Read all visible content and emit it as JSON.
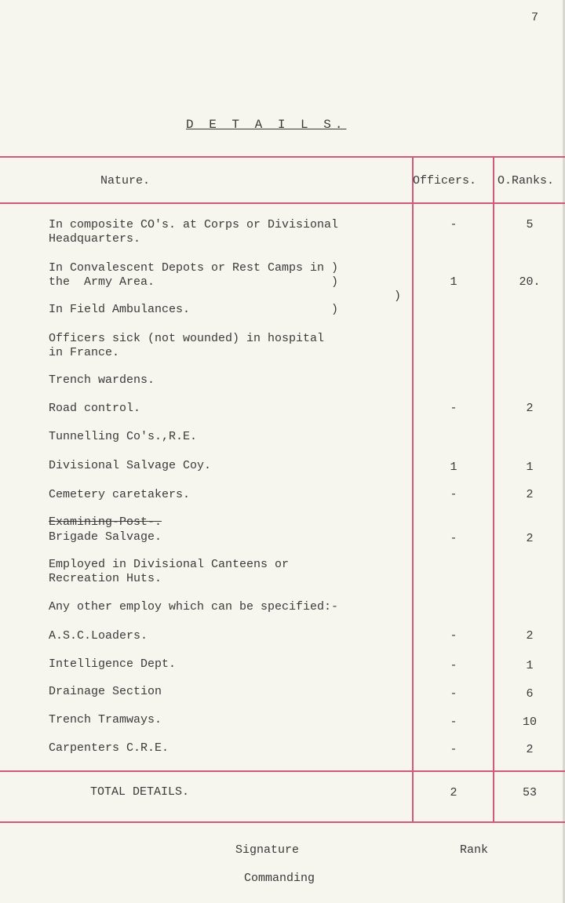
{
  "page_number": "7",
  "title": "D E T A I L S.",
  "headers": {
    "nature": "Nature.",
    "officers": "Officers.",
    "other_ranks": "O.Ranks."
  },
  "rows": [
    {
      "nature": [
        "In composite CO's. at Corps or Divisional",
        "Headquarters."
      ],
      "officers": "-",
      "other_ranks": "5"
    },
    {
      "nature": [
        "In Convalescent Depots or Rest Camps in )",
        "the  Army Area.                         )"
      ],
      "officers": "1",
      "other_ranks": "20."
    },
    {
      "nature": [
        "In Field Ambulances.                    )"
      ],
      "bracket": ")"
    },
    {
      "nature": [
        "Officers sick (not wounded) in hospital",
        "in France."
      ]
    },
    {
      "nature": [
        "Trench wardens."
      ]
    },
    {
      "nature": [
        "Road control."
      ],
      "officers": "-",
      "other_ranks": "2"
    },
    {
      "nature": [
        "Tunnelling Co's.,R.E."
      ]
    },
    {
      "nature": [
        "Divisional Salvage Coy."
      ],
      "officers": "1",
      "other_ranks": "1"
    },
    {
      "nature": [
        "Cemetery caretakers."
      ],
      "officers": "-",
      "other_ranks": "2"
    },
    {
      "struck": "Examining-Post-.",
      "nature": [
        "Brigade Salvage."
      ],
      "officers": "-",
      "other_ranks": "2"
    },
    {
      "nature": [
        "Employed in Divisional Canteens or",
        "Recreation Huts."
      ]
    },
    {
      "nature": [
        "Any other employ which can be specified:-"
      ]
    },
    {
      "nature": [
        "A.S.C.Loaders."
      ],
      "officers": "-",
      "other_ranks": "2"
    },
    {
      "nature": [
        "Intelligence Dept."
      ],
      "officers": "-",
      "other_ranks": "1"
    },
    {
      "nature": [
        "Drainage Section"
      ],
      "officers": "-",
      "other_ranks": "6"
    },
    {
      "nature": [
        "Trench Tramways."
      ],
      "officers": "-",
      "other_ranks": "10"
    },
    {
      "nature": [
        "Carpenters C.R.E."
      ],
      "officers": "-",
      "other_ranks": "2"
    }
  ],
  "total": {
    "label": "TOTAL DETAILS.",
    "officers": "2",
    "other_ranks": "53"
  },
  "footer": {
    "signature": "Signature",
    "rank": "Rank",
    "commanding": "Commanding"
  }
}
